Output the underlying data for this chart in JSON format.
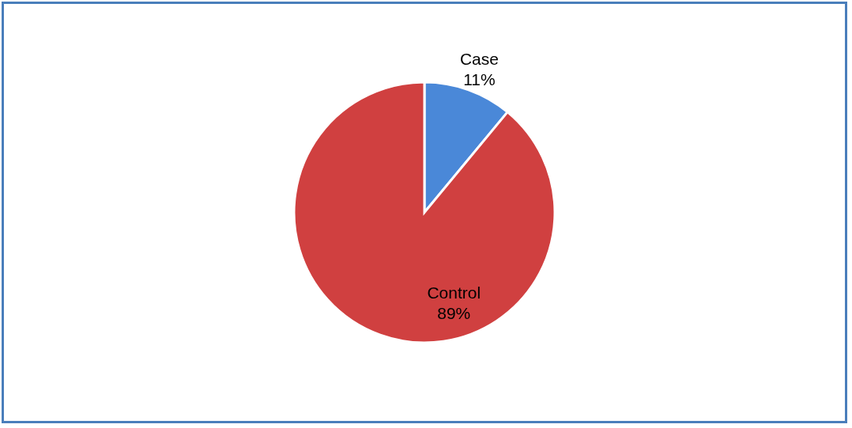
{
  "chart_data": {
    "type": "pie",
    "categories": [
      "Case",
      "Control"
    ],
    "values": [
      11,
      89
    ],
    "value_labels": [
      "11%",
      "89%"
    ],
    "colors": [
      "#4a88d8",
      "#d04040"
    ]
  }
}
